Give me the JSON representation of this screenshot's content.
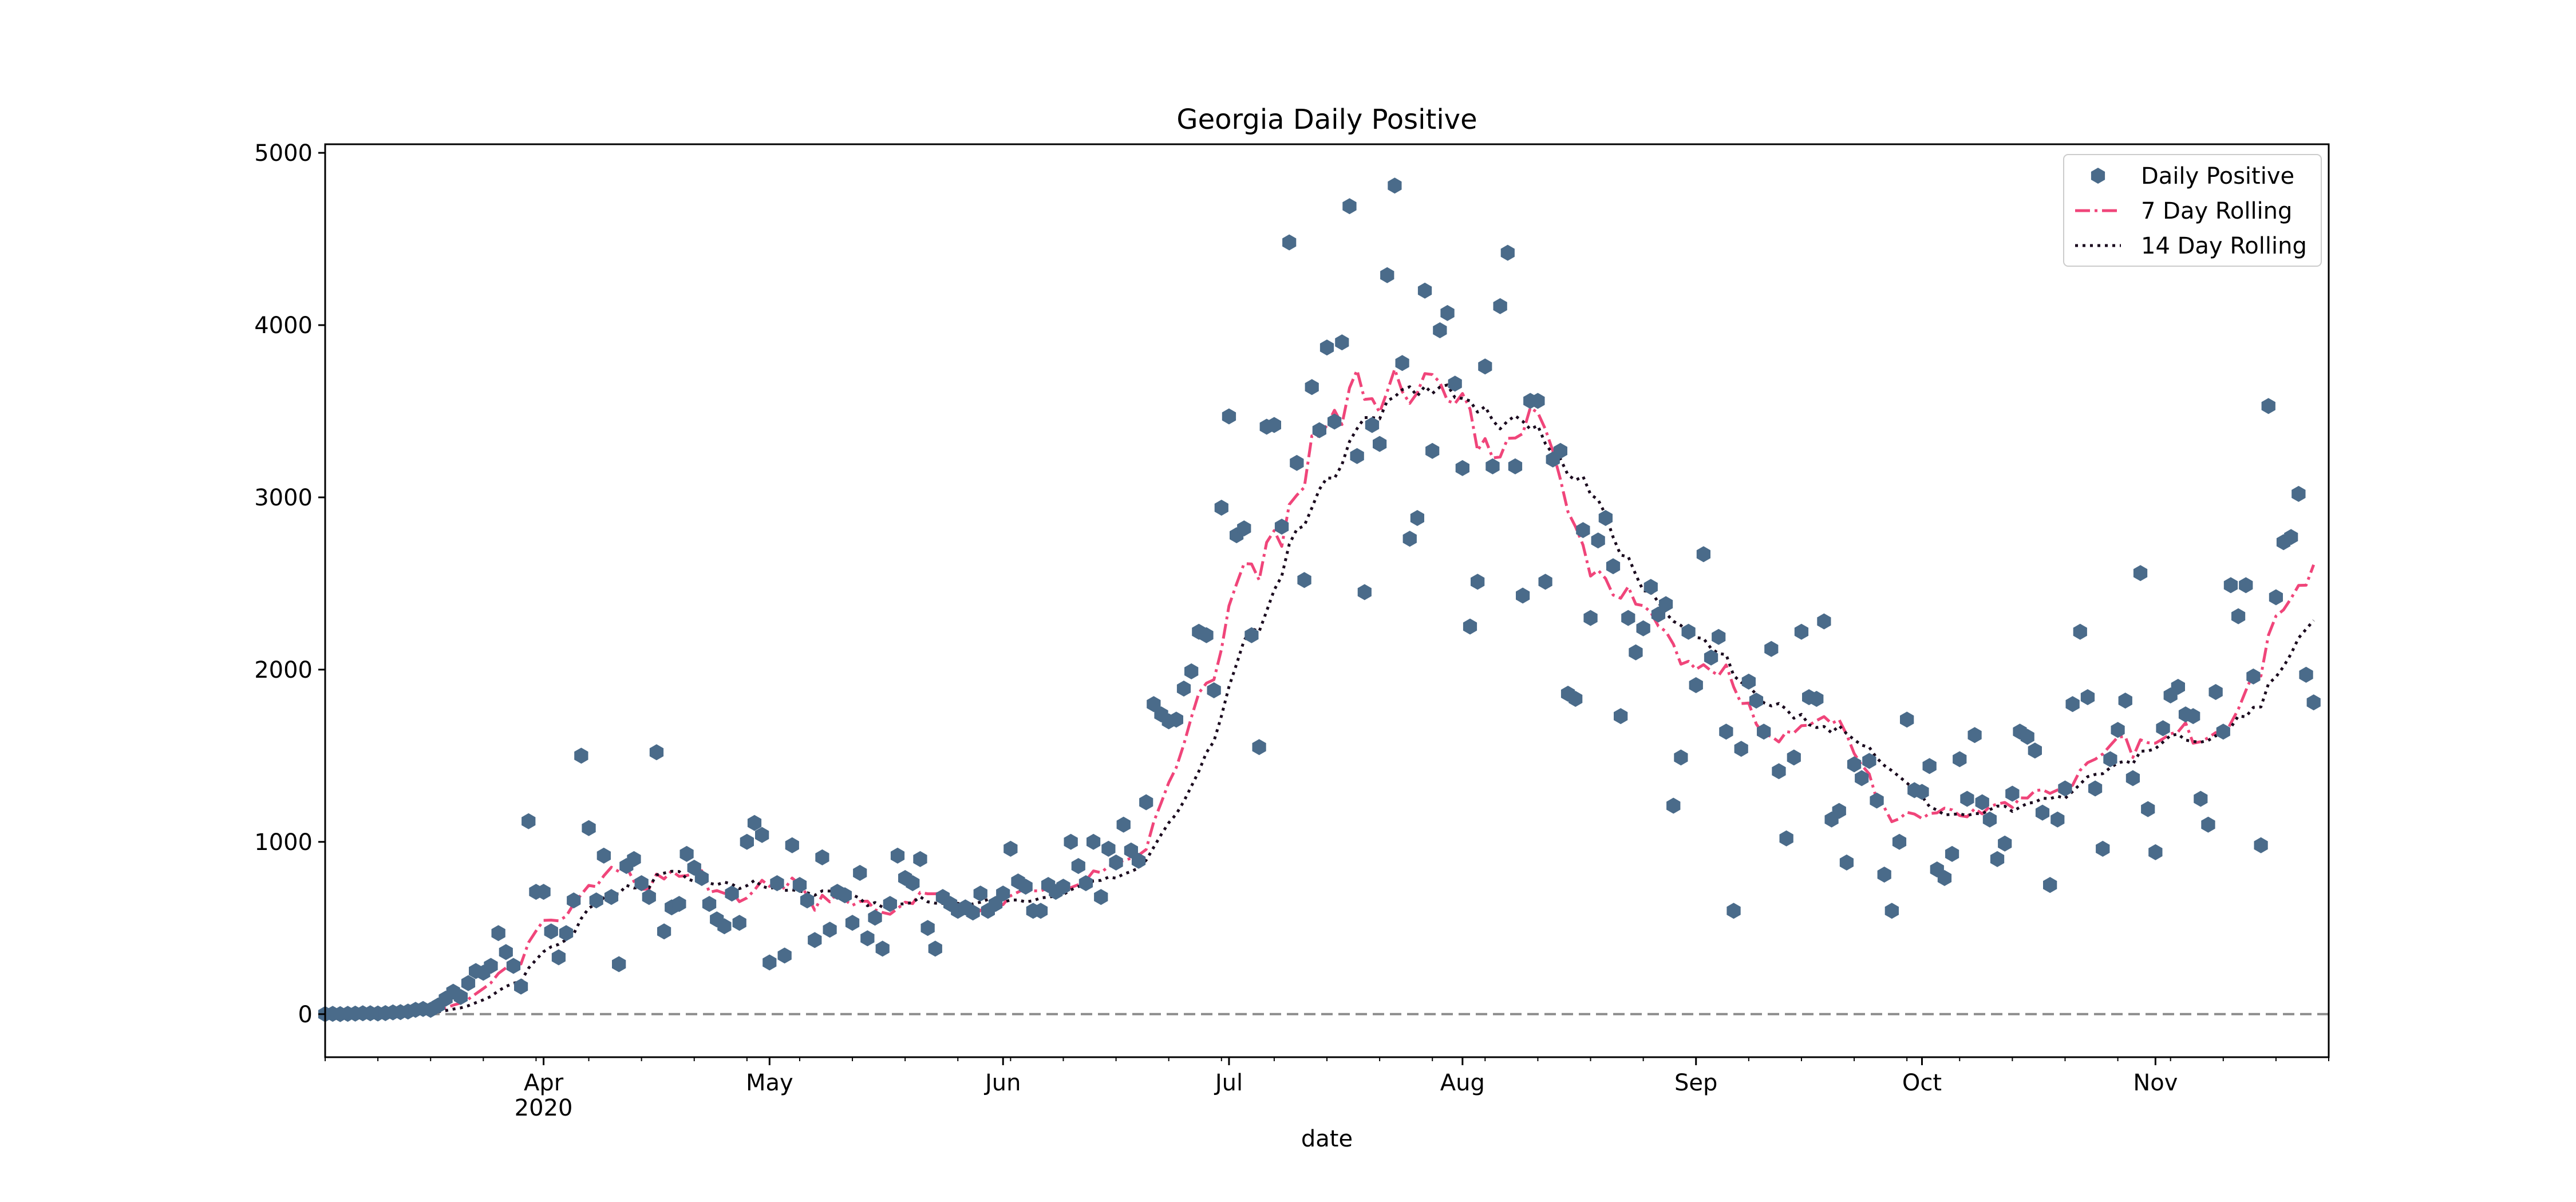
{
  "chart_data": {
    "type": "line",
    "title": "Georgia Daily Positive",
    "xlabel": "date",
    "ylabel": "",
    "x_range": [
      "2020-03-03",
      "2020-11-24"
    ],
    "ylim": [
      -250,
      5050
    ],
    "y_ticks": [
      0,
      1000,
      2000,
      3000,
      4000,
      5000
    ],
    "x_ticks": [
      {
        "date": "2020-04-01",
        "label": "Apr",
        "sublabel": "2020"
      },
      {
        "date": "2020-05-01",
        "label": "May",
        "sublabel": ""
      },
      {
        "date": "2020-06-01",
        "label": "Jun",
        "sublabel": ""
      },
      {
        "date": "2020-07-01",
        "label": "Jul",
        "sublabel": ""
      },
      {
        "date": "2020-08-01",
        "label": "Aug",
        "sublabel": ""
      },
      {
        "date": "2020-09-01",
        "label": "Sep",
        "sublabel": ""
      },
      {
        "date": "2020-10-01",
        "label": "Oct",
        "sublabel": ""
      },
      {
        "date": "2020-11-01",
        "label": "Nov",
        "sublabel": ""
      }
    ],
    "reference_line": {
      "y": 0,
      "style": "dashed",
      "color": "#8c8c8c"
    },
    "legend_position": "top-right",
    "grid": false,
    "start_date": "2020-03-03",
    "series": [
      {
        "name": "Daily Positive",
        "kind": "scatter",
        "marker": "hexagon",
        "color": "#4a6b8a",
        "values": [
          0,
          2,
          0,
          2,
          3,
          5,
          5,
          4,
          6,
          10,
          12,
          15,
          25,
          30,
          25,
          50,
          90,
          130,
          100,
          180,
          250,
          240,
          280,
          470,
          360,
          280,
          160,
          1120,
          710,
          710,
          480,
          330,
          470,
          660,
          1500,
          1080,
          660,
          920,
          680,
          290,
          860,
          900,
          760,
          680,
          1520,
          480,
          620,
          640,
          930,
          850,
          790,
          640,
          550,
          510,
          700,
          530,
          1000,
          1110,
          1040,
          300,
          760,
          340,
          980,
          750,
          660,
          430,
          910,
          490,
          710,
          690,
          530,
          820,
          440,
          560,
          380,
          640,
          920,
          790,
          760,
          900,
          500,
          380,
          680,
          640,
          600,
          620,
          590,
          700,
          600,
          640,
          700,
          960,
          770,
          740,
          600,
          600,
          750,
          710,
          740,
          1000,
          860,
          760,
          1000,
          680,
          960,
          880,
          1100,
          950,
          890,
          1230,
          1800,
          1740,
          1700,
          1710,
          1890,
          1990,
          2220,
          2200,
          1880,
          2940,
          3470,
          2780,
          2820,
          2200,
          1550,
          3410,
          3420,
          2830,
          4480,
          3200,
          2520,
          3640,
          3390,
          3870,
          3440,
          3900,
          4690,
          3240,
          2450,
          3420,
          3310,
          4290,
          4810,
          3780,
          2760,
          2880,
          4200,
          3270,
          3970,
          4070,
          3660,
          3170,
          2250,
          2510,
          3760,
          3180,
          4110,
          4420,
          3180,
          2430,
          3560,
          3560,
          2510,
          3220,
          3270,
          1860,
          1830,
          2810,
          2300,
          2750,
          2880,
          2600,
          1730,
          2300,
          2100,
          2240,
          2480,
          2320,
          2380,
          1210,
          1490,
          2220,
          1910,
          2670,
          2070,
          2190,
          1640,
          600,
          1540,
          1930,
          1820,
          1640,
          2120,
          1410,
          1020,
          1490,
          2220,
          1840,
          1830,
          2280,
          1130,
          1180,
          880,
          1450,
          1370,
          1470,
          1240,
          810,
          600,
          1000,
          1710,
          1300,
          1290,
          1440,
          840,
          790,
          930,
          1480,
          1250,
          1620,
          1230,
          1130,
          900,
          990,
          1280,
          1640,
          1610,
          1530,
          1170,
          750,
          1130,
          1310,
          1800,
          2220,
          1840,
          1310,
          960,
          1480,
          1650,
          1820,
          1370,
          2560,
          1190,
          940,
          1660,
          1850,
          1900,
          1740,
          1730,
          1250,
          1100,
          1870,
          1640,
          2490,
          2310,
          2490,
          1960,
          980,
          3530,
          2420,
          2740,
          2770,
          3020,
          1970,
          1810
        ]
      },
      {
        "name": "7 Day Rolling",
        "kind": "line",
        "style": "dashdot",
        "color": "#f0457a",
        "window": 7
      },
      {
        "name": "14 Day Rolling",
        "kind": "line",
        "style": "dotted",
        "color": "#1a0a1e",
        "window": 14
      }
    ]
  }
}
